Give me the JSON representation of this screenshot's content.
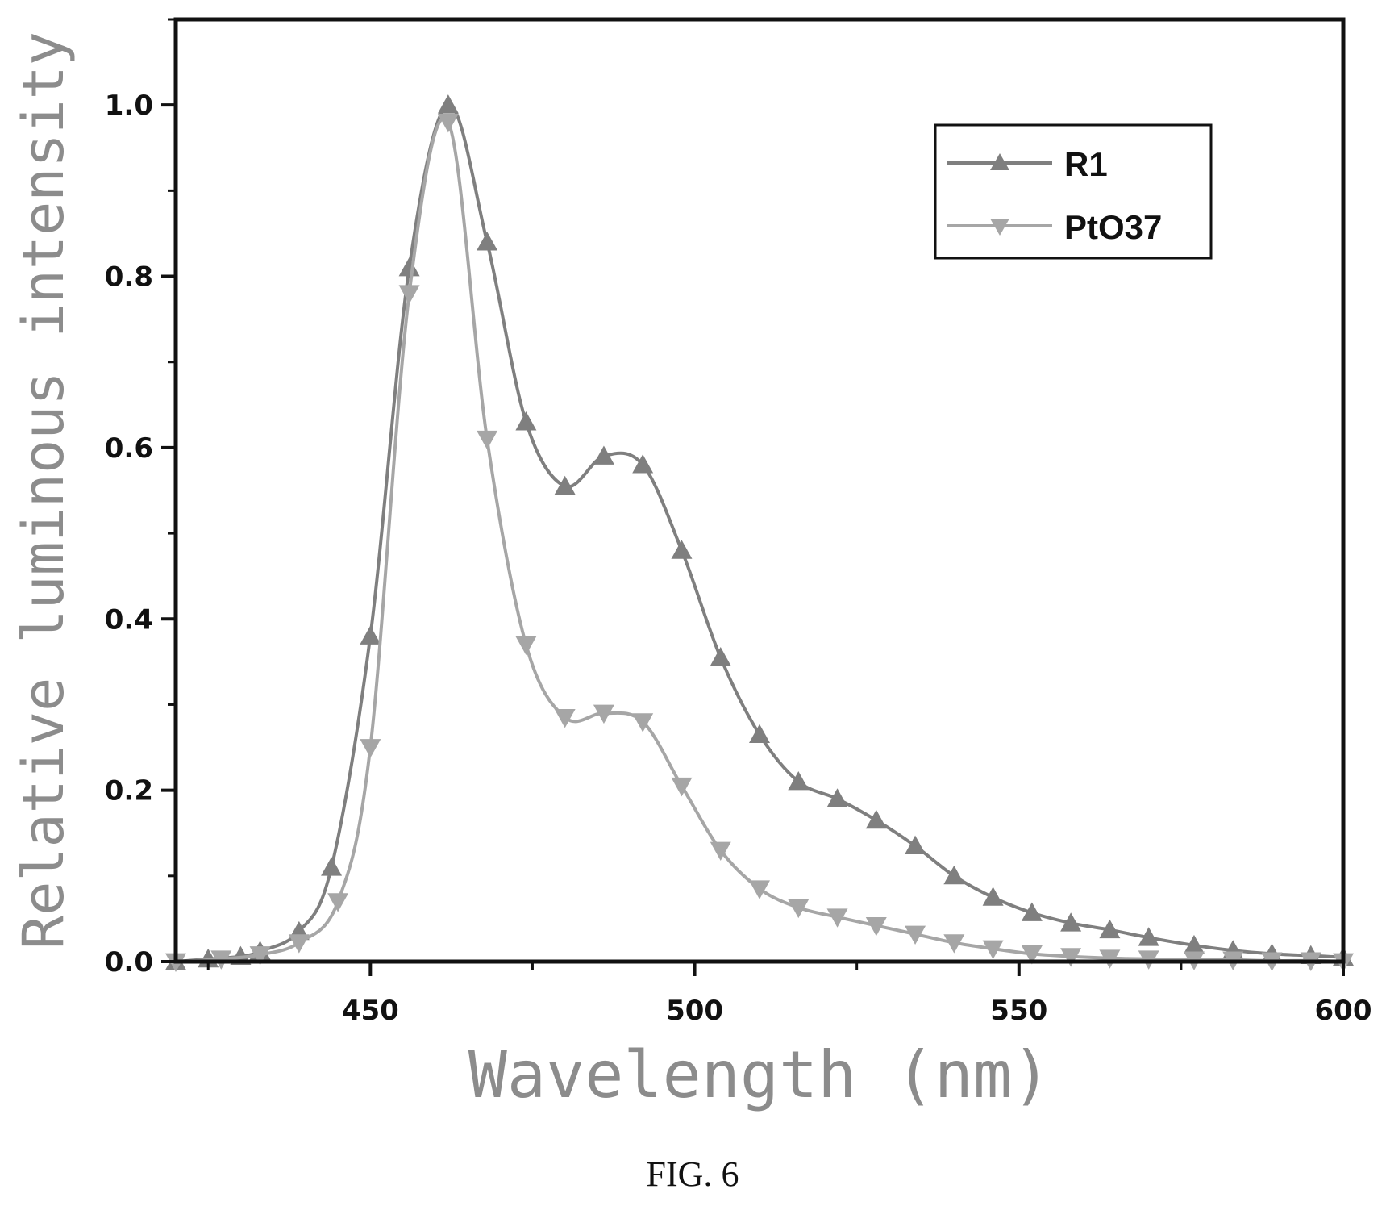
{
  "chart_data": {
    "type": "line",
    "title": "",
    "xlabel": "Wavelength (nm)",
    "ylabel": "Relative luminous intensity",
    "xlim": [
      420,
      600
    ],
    "ylim": [
      0.0,
      1.1
    ],
    "x_ticks": [
      "450",
      "500",
      "550",
      "600"
    ],
    "y_ticks": [
      "0.0",
      "0.2",
      "0.4",
      "0.6",
      "0.8",
      "1.0"
    ],
    "grid": false,
    "legend_position": "top-right",
    "series": [
      {
        "name": "R1",
        "marker": "triangle-up",
        "color": "#7f7f7f",
        "points": [
          [
            420,
            0.0
          ],
          [
            425,
            0.003
          ],
          [
            430,
            0.006
          ],
          [
            433,
            0.012
          ],
          [
            439,
            0.035
          ],
          [
            444,
            0.11
          ],
          [
            450,
            0.38
          ],
          [
            456,
            0.81
          ],
          [
            462,
            1.0
          ],
          [
            468,
            0.84
          ],
          [
            474,
            0.63
          ],
          [
            480,
            0.555
          ],
          [
            486,
            0.59
          ],
          [
            492,
            0.58
          ],
          [
            498,
            0.48
          ],
          [
            504,
            0.355
          ],
          [
            510,
            0.265
          ],
          [
            516,
            0.21
          ],
          [
            522,
            0.19
          ],
          [
            528,
            0.165
          ],
          [
            534,
            0.135
          ],
          [
            540,
            0.1
          ],
          [
            546,
            0.075
          ],
          [
            552,
            0.057
          ],
          [
            558,
            0.045
          ],
          [
            564,
            0.037
          ],
          [
            570,
            0.028
          ],
          [
            577,
            0.019
          ],
          [
            583,
            0.013
          ],
          [
            589,
            0.009
          ],
          [
            595,
            0.007
          ],
          [
            600,
            0.005
          ]
        ]
      },
      {
        "name": "PtO37",
        "marker": "triangle-down",
        "color": "#a6a6a6",
        "points": [
          [
            420,
            0.0
          ],
          [
            427,
            0.003
          ],
          [
            433,
            0.008
          ],
          [
            439,
            0.022
          ],
          [
            445,
            0.07
          ],
          [
            450,
            0.25
          ],
          [
            456,
            0.78
          ],
          [
            462,
            0.98
          ],
          [
            468,
            0.61
          ],
          [
            474,
            0.37
          ],
          [
            480,
            0.285
          ],
          [
            486,
            0.29
          ],
          [
            492,
            0.28
          ],
          [
            498,
            0.205
          ],
          [
            504,
            0.13
          ],
          [
            510,
            0.085
          ],
          [
            516,
            0.063
          ],
          [
            522,
            0.052
          ],
          [
            528,
            0.042
          ],
          [
            534,
            0.032
          ],
          [
            540,
            0.022
          ],
          [
            546,
            0.015
          ],
          [
            552,
            0.009
          ],
          [
            558,
            0.006
          ],
          [
            564,
            0.004
          ],
          [
            570,
            0.003
          ],
          [
            577,
            0.002
          ],
          [
            583,
            0.002
          ],
          [
            589,
            0.001
          ],
          [
            595,
            0.001
          ],
          [
            600,
            0.0
          ]
        ]
      }
    ]
  },
  "caption": "FIG. 6"
}
